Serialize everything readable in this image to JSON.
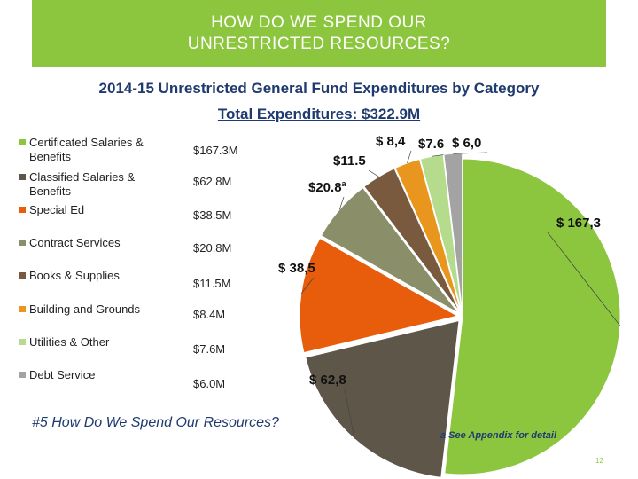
{
  "slide": {
    "banner_line1": "HOW DO WE SPEND OUR",
    "banner_line2": "UNRESTRICTED RESOURCES?",
    "subtitle": "2014-15 Unrestricted General Fund Expenditures by Category",
    "total": "Total Expenditures: $322.9M",
    "question": "#5 How Do We Spend Our Resources?",
    "footnote": "a  See Appendix for detail",
    "page_number": "12",
    "banner_color": "#8cc63f",
    "title_color": "#1f3a6e"
  },
  "legend": [
    {
      "label": "Certificated Salaries & Benefits",
      "value": "$167.3M",
      "color": "#8cc63f"
    },
    {
      "label": "Classified Salaries & Benefits",
      "value": "$62.8M",
      "color": "#5f564a"
    },
    {
      "label": "Special Ed",
      "value": "$38.5M",
      "color": "#e85d0c"
    },
    {
      "label": "Contract Services",
      "value": "$20.8M",
      "color": "#8a8f6a"
    },
    {
      "label": "Books & Supplies",
      "value": "$11.5M",
      "color": "#7a5a3e"
    },
    {
      "label": "Building and Grounds",
      "value": "$8.4M",
      "color": "#e8961e"
    },
    {
      "label": "Utilities & Other",
      "value": "$7.6M",
      "color": "#b5dc8c"
    },
    {
      "label": "Debt Service",
      "value": "$6.0M",
      "color": "#a3a3a3"
    }
  ],
  "chart_data": {
    "type": "pie",
    "title": "2014-15 Unrestricted General Fund Expenditures by Category",
    "subtitle": "Total Expenditures: $322.9M",
    "units": "$M",
    "categories": [
      "Certificated Salaries & Benefits",
      "Classified Salaries & Benefits",
      "Special Ed",
      "Contract Services",
      "Books & Supplies",
      "Building and Grounds",
      "Utilities & Other",
      "Debt Service"
    ],
    "values": [
      167.3,
      62.8,
      38.5,
      20.8,
      11.5,
      8.4,
      7.6,
      6.0
    ],
    "data_labels": [
      "$ 167,3",
      "$ 62,8",
      "$ 38,5",
      "$20.8",
      "$11.5",
      "$ 8,4",
      "$7.6",
      "$ 6,0"
    ],
    "label_superscripts": [
      "",
      "",
      "",
      "a",
      "",
      "",
      "",
      ""
    ],
    "colors": [
      "#8cc63f",
      "#5f564a",
      "#e85d0c",
      "#8a8f6a",
      "#7a5a3e",
      "#e8961e",
      "#b5dc8c",
      "#a3a3a3"
    ],
    "legend_position": "left"
  }
}
